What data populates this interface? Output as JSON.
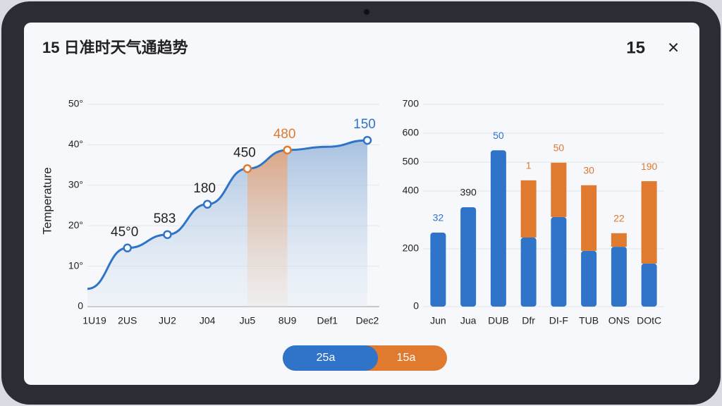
{
  "header": {
    "title": "15 日准时天气通趋势",
    "count": "15",
    "close": "×"
  },
  "toggle": {
    "left": "25a",
    "right": "15a"
  },
  "chart_data": [
    {
      "type": "line",
      "y_label": "Temperature",
      "categories": [
        "1U19",
        "2US",
        "JU2",
        "J04",
        "Ju5",
        "8U9",
        "Def1",
        "Dec2"
      ],
      "values": [
        4.4,
        14.5,
        17.8,
        25.3,
        34.1,
        38.7,
        39.5,
        41.1
      ],
      "color": "#2f74c8",
      "marker_colors": [
        null,
        "#2f74c8",
        "#2f74c8",
        "#2f74c8",
        "#e07a2e",
        "#e07a2e",
        null,
        "#2f74c8"
      ],
      "point_labels": [
        null,
        "45°0",
        "583",
        "180",
        "450",
        "480",
        null,
        "150"
      ],
      "point_label_colors": [
        "#222",
        "#222",
        "#222",
        "#222",
        "#222",
        "#e07a2e",
        "#222",
        "#2f74c8"
      ],
      "highlight_color": "#e8a070",
      "ylim": [
        0,
        50
      ],
      "yticks": [
        0,
        {
          "value": 10,
          "label": "10°"
        },
        {
          "value": 20,
          "label": "20°"
        },
        {
          "value": 30,
          "label": "30°"
        },
        {
          "value": 40,
          "label": "40°"
        },
        {
          "value": 50,
          "label": "50°"
        }
      ],
      "grid": true
    },
    {
      "type": "bar",
      "categories": [
        "Jun",
        "Jua",
        "DUB",
        "Dfr",
        "DI-F",
        "TUB",
        "ONS",
        "DOtC"
      ],
      "series": [
        {
          "name": "blue",
          "color": "#2f74c8",
          "values": [
            256,
            344,
            541,
            239,
            310,
            193,
            207,
            149
          ]
        },
        {
          "name": "orange",
          "color": "#e07a2e",
          "values": [
            null,
            null,
            null,
            198,
            188,
            227,
            47,
            285
          ]
        }
      ],
      "bar_labels": [
        "32",
        "390",
        "50",
        "1",
        "50",
        "30",
        "22",
        "190"
      ],
      "bar_label_colors": [
        "#2f74c8",
        "#222",
        "#2f74c8",
        "#e07a2e",
        "#e07a2e",
        "#e07a2e",
        "#e07a2e",
        "#e07a2e"
      ],
      "ylim": [
        0,
        700
      ],
      "yticks": [
        0,
        200,
        400,
        500,
        600,
        700
      ],
      "grid": true
    }
  ]
}
